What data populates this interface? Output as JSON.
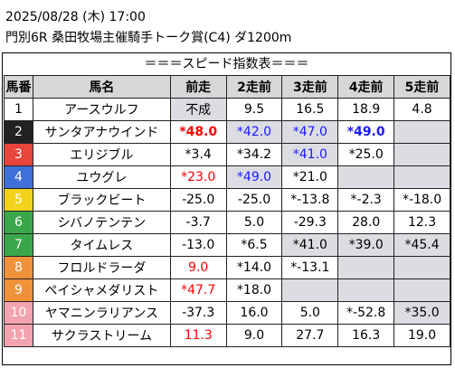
{
  "header": {
    "line1": "2025/08/28 (木) 17:00",
    "line2": "門別6R 桑田牧場主催騎手トーク賞(C4) ダ1200m"
  },
  "table": {
    "title": "＝＝＝スピード指数表＝＝＝",
    "columns": [
      "馬番",
      "馬名",
      "前走",
      "2走前",
      "3走前",
      "4走前",
      "5走前"
    ],
    "rows": [
      {
        "no": "1",
        "name": "アースウルフ",
        "no_bg": "#ffffff",
        "no_color": "#000000",
        "cells": [
          {
            "v": "不成",
            "gray": true
          },
          {
            "v": "9.5"
          },
          {
            "v": "16.5"
          },
          {
            "v": "18.9"
          },
          {
            "v": "4.8"
          }
        ]
      },
      {
        "no": "2",
        "name": "サンタアナウインド",
        "no_bg": "#222222",
        "no_color": "#ffffff",
        "cells": [
          {
            "v": "*48.0",
            "color": "red",
            "bold": true
          },
          {
            "v": "*42.0",
            "color": "blue",
            "gray": true
          },
          {
            "v": "*47.0",
            "color": "blue",
            "gray": true
          },
          {
            "v": "*49.0",
            "color": "blue",
            "bold": true
          },
          {
            "v": "",
            "gray": true
          }
        ]
      },
      {
        "no": "3",
        "name": "エリジブル",
        "no_bg": "#e8453c",
        "no_color": "#ffffff",
        "cells": [
          {
            "v": "*3.4",
            "leftbar": true
          },
          {
            "v": "*34.2"
          },
          {
            "v": "*41.0",
            "color": "blue",
            "gray": true
          },
          {
            "v": "*25.0"
          },
          {
            "v": "",
            "gray": true
          }
        ]
      },
      {
        "no": "4",
        "name": "ユウグレ",
        "no_bg": "#3f6fd8",
        "no_color": "#ffffff",
        "cells": [
          {
            "v": "*23.0",
            "color": "red"
          },
          {
            "v": "*49.0",
            "color": "blue",
            "gray": true
          },
          {
            "v": "*21.0"
          },
          {
            "v": "",
            "gray": true
          },
          {
            "v": "",
            "gray": true
          }
        ]
      },
      {
        "no": "5",
        "name": "ブラックビート",
        "no_bg": "#f2d21c",
        "no_color": "#ffffff",
        "cells": [
          {
            "v": "-25.0"
          },
          {
            "v": "-25.0"
          },
          {
            "v": "*-13.8"
          },
          {
            "v": "*-2.3"
          },
          {
            "v": "*-18.0"
          }
        ]
      },
      {
        "no": "6",
        "name": "シバノテンテン",
        "no_bg": "#3aa84a",
        "no_color": "#ffffff",
        "cells": [
          {
            "v": "-3.7"
          },
          {
            "v": "5.0"
          },
          {
            "v": "-29.3"
          },
          {
            "v": "28.0"
          },
          {
            "v": "12.3"
          }
        ]
      },
      {
        "no": "7",
        "name": "タイムレス",
        "no_bg": "#3aa84a",
        "no_color": "#ffffff",
        "cells": [
          {
            "v": "-13.0"
          },
          {
            "v": "*6.5"
          },
          {
            "v": "*41.0",
            "gray": true
          },
          {
            "v": "*39.0",
            "gray": true
          },
          {
            "v": "*45.4",
            "gray": true
          }
        ]
      },
      {
        "no": "8",
        "name": "フロルドラーダ",
        "no_bg": "#f0923a",
        "no_color": "#ffffff",
        "cells": [
          {
            "v": "9.0",
            "color": "red"
          },
          {
            "v": "*14.0"
          },
          {
            "v": "*-13.1"
          },
          {
            "v": "",
            "gray": true
          },
          {
            "v": "",
            "gray": true
          }
        ]
      },
      {
        "no": "9",
        "name": "ペイシャメダリスト",
        "no_bg": "#f0923a",
        "no_color": "#ffffff",
        "cells": [
          {
            "v": "*47.7",
            "color": "red"
          },
          {
            "v": "*18.0"
          },
          {
            "v": "",
            "gray": true
          },
          {
            "v": "",
            "gray": true
          },
          {
            "v": "",
            "gray": true
          }
        ]
      },
      {
        "no": "10",
        "name": "ヤマニンラリアンス",
        "no_bg": "#f2a3ad",
        "no_color": "#ffffff",
        "cells": [
          {
            "v": "-37.3"
          },
          {
            "v": "16.0"
          },
          {
            "v": "5.0"
          },
          {
            "v": "*-52.8"
          },
          {
            "v": "*35.0",
            "gray": true
          }
        ]
      },
      {
        "no": "11",
        "name": "サクラストリーム",
        "no_bg": "#f2a3ad",
        "no_color": "#ffffff",
        "cells": [
          {
            "v": "11.3",
            "color": "red"
          },
          {
            "v": "9.0"
          },
          {
            "v": "27.7"
          },
          {
            "v": "16.3"
          },
          {
            "v": "19.0"
          }
        ]
      }
    ]
  }
}
